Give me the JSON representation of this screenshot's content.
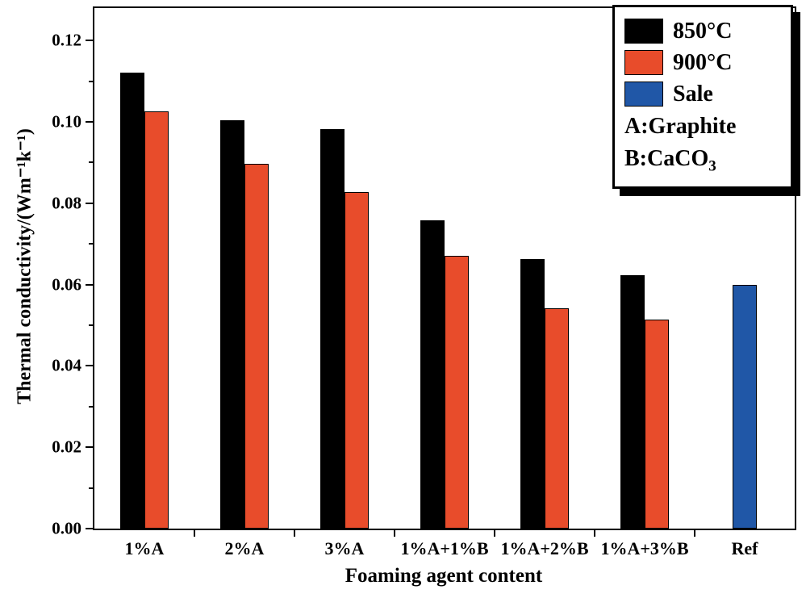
{
  "figure": {
    "xlabel": "Foaming agent content",
    "ylabel": "Thermal conductivity/(Wm⁻¹k⁻¹)"
  },
  "legend": {
    "items": [
      {
        "label": "850°C",
        "color": "#000000"
      },
      {
        "label": "900°C",
        "color": "#e84c2b"
      },
      {
        "label": "Sale",
        "color": "#2057a7"
      }
    ],
    "note_a": "A:Graphite",
    "note_b_main": "B:CaCO",
    "note_b_sub": "3"
  },
  "chart_data": {
    "type": "bar",
    "title": "",
    "xlabel": "Foaming agent content",
    "ylabel": "Thermal conductivity/(Wm-1k-1)",
    "categories": [
      "1%A",
      "2%A",
      "3%A",
      "1%A+1%B",
      "1%A+2%B",
      "1%A+3%B",
      "Ref"
    ],
    "series": [
      {
        "name": "850°C",
        "color": "#000000",
        "values": [
          0.1122,
          0.1005,
          0.0982,
          0.0758,
          0.0662,
          0.0623,
          null
        ]
      },
      {
        "name": "900°C",
        "color": "#e84c2b",
        "values": [
          0.1026,
          0.0897,
          0.0828,
          0.0671,
          0.0541,
          0.0514,
          null
        ]
      },
      {
        "name": "Sale",
        "color": "#2057a7",
        "values": [
          null,
          null,
          null,
          null,
          null,
          null,
          0.06
        ]
      }
    ],
    "ylim": [
      0,
      0.128
    ],
    "yticks": [
      0,
      0.02,
      0.04,
      0.06,
      0.08,
      0.1,
      0.12
    ],
    "ytick_labels": [
      "0.00",
      "0.02",
      "0.04",
      "0.06",
      "0.08",
      "0.10",
      "0.12"
    ],
    "grid": false,
    "legend_position": "top-right"
  }
}
